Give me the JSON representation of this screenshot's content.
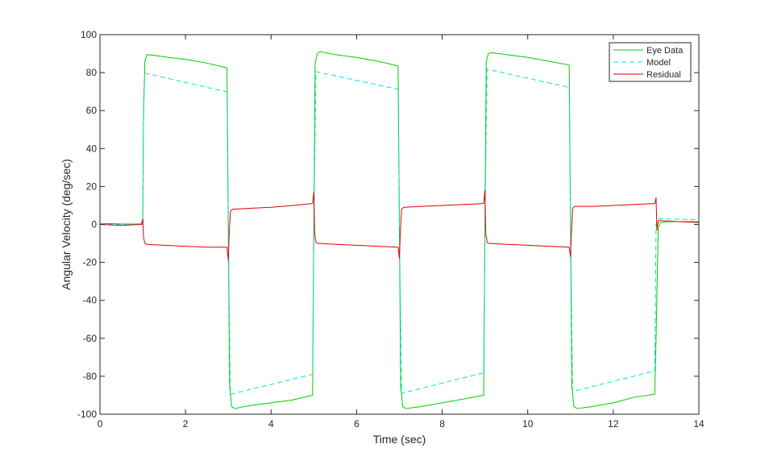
{
  "chart_data": {
    "type": "line",
    "xlabel": "Time (sec)",
    "ylabel": "Angular  Velocity  (deg/sec)",
    "xlim": [
      0,
      14
    ],
    "ylim": [
      -100,
      100
    ],
    "x_ticks": [
      0,
      2,
      4,
      6,
      8,
      10,
      12,
      14
    ],
    "y_ticks": [
      -100,
      -80,
      -60,
      -40,
      -20,
      0,
      20,
      40,
      60,
      80,
      100
    ],
    "x_tick_labels": [
      "0",
      "2",
      "4",
      "6",
      "8",
      "10",
      "12",
      "14"
    ],
    "y_tick_labels": [
      "-100",
      "-80",
      "-60",
      "-40",
      "-20",
      "0",
      "20",
      "40",
      "60",
      "80",
      "100"
    ],
    "grid": false,
    "legend": {
      "position": "top-right",
      "entries": [
        "Eye Data",
        "Model",
        "Residual"
      ]
    },
    "series": [
      {
        "name": "Eye Data",
        "color": "#00cc00",
        "style": "solid",
        "x": [
          0,
          0.2,
          0.4,
          0.6,
          0.8,
          1.0,
          1.02,
          1.05,
          1.1,
          1.3,
          1.6,
          2.0,
          2.5,
          2.97,
          3.0,
          3.03,
          3.08,
          3.15,
          3.5,
          4.0,
          4.5,
          4.97,
          5.0,
          5.03,
          5.08,
          5.15,
          5.5,
          6.0,
          6.5,
          6.97,
          7.0,
          7.03,
          7.08,
          7.15,
          7.5,
          8.0,
          8.5,
          8.97,
          9.0,
          9.03,
          9.08,
          9.15,
          9.5,
          10.0,
          10.5,
          10.97,
          11.0,
          11.03,
          11.08,
          11.15,
          11.5,
          12.0,
          12.5,
          12.97,
          13.0,
          13.05,
          13.1,
          13.3,
          13.6,
          14.0
        ],
        "y": [
          0.3,
          0.5,
          0.3,
          0.2,
          0.2,
          0.3,
          60,
          86,
          89.5,
          89,
          88,
          87,
          85,
          82.5,
          0,
          -85,
          -96,
          -97,
          -95.5,
          -94,
          -92.5,
          -90,
          0,
          85,
          90,
          91,
          89.5,
          88,
          86,
          83.5,
          0,
          -86,
          -96,
          -97,
          -96,
          -94,
          -92,
          -90,
          0,
          86,
          90,
          90.5,
          89.5,
          88,
          86,
          84,
          0,
          -85,
          -96,
          -97,
          -96,
          -94,
          -91,
          -89.5,
          -60,
          -2,
          1,
          1.5,
          1.5,
          1.5
        ]
      },
      {
        "name": "Model",
        "color": "#00e0e0",
        "style": "dashed",
        "x": [
          0,
          1.0,
          1.02,
          1.05,
          1.1,
          2.97,
          3.0,
          3.05,
          4.97,
          5.0,
          5.05,
          6.97,
          7.0,
          7.05,
          8.97,
          9.0,
          9.05,
          10.97,
          11.0,
          11.05,
          12.97,
          13.0,
          13.05,
          14.0
        ],
        "y": [
          0,
          0,
          60,
          79.5,
          79.5,
          69.8,
          0,
          -89.5,
          -79,
          0,
          80.5,
          71.2,
          0,
          -89,
          -78.2,
          0,
          81.8,
          72.2,
          0,
          -88,
          -77.2,
          0,
          3,
          2.5
        ]
      },
      {
        "name": "Residual",
        "color": "#e00000",
        "style": "solid",
        "x": [
          0,
          0.5,
          0.97,
          1.0,
          1.02,
          1.05,
          1.1,
          1.5,
          2.0,
          2.5,
          2.97,
          3.0,
          3.02,
          3.05,
          3.1,
          3.5,
          4.0,
          4.5,
          4.97,
          5.0,
          5.02,
          5.05,
          5.1,
          5.5,
          6.0,
          6.5,
          6.97,
          7.0,
          7.02,
          7.05,
          7.1,
          7.5,
          8.0,
          8.5,
          8.97,
          9.0,
          9.02,
          9.05,
          9.1,
          9.5,
          10.0,
          10.5,
          10.97,
          11.0,
          11.02,
          11.05,
          11.1,
          11.5,
          12.0,
          12.5,
          12.97,
          13.0,
          13.02,
          13.05,
          13.1,
          13.5,
          14.0
        ],
        "y": [
          0,
          -0.5,
          0,
          3,
          -7,
          -10,
          -10.5,
          -11,
          -11.5,
          -12,
          -12,
          -19,
          -5,
          7,
          8,
          8.5,
          9,
          10,
          11,
          17,
          -5,
          -9.5,
          -10,
          -10.5,
          -11,
          -11.5,
          -12,
          -18,
          -5,
          8,
          9,
          9.5,
          10,
          10.5,
          11,
          18,
          -5,
          -9.5,
          -10,
          -10.5,
          -11,
          -11.5,
          -12,
          -17,
          -5,
          8.5,
          9.5,
          9.5,
          10,
          10.5,
          11,
          14,
          -3,
          2,
          2,
          1.5,
          1
        ]
      }
    ]
  }
}
